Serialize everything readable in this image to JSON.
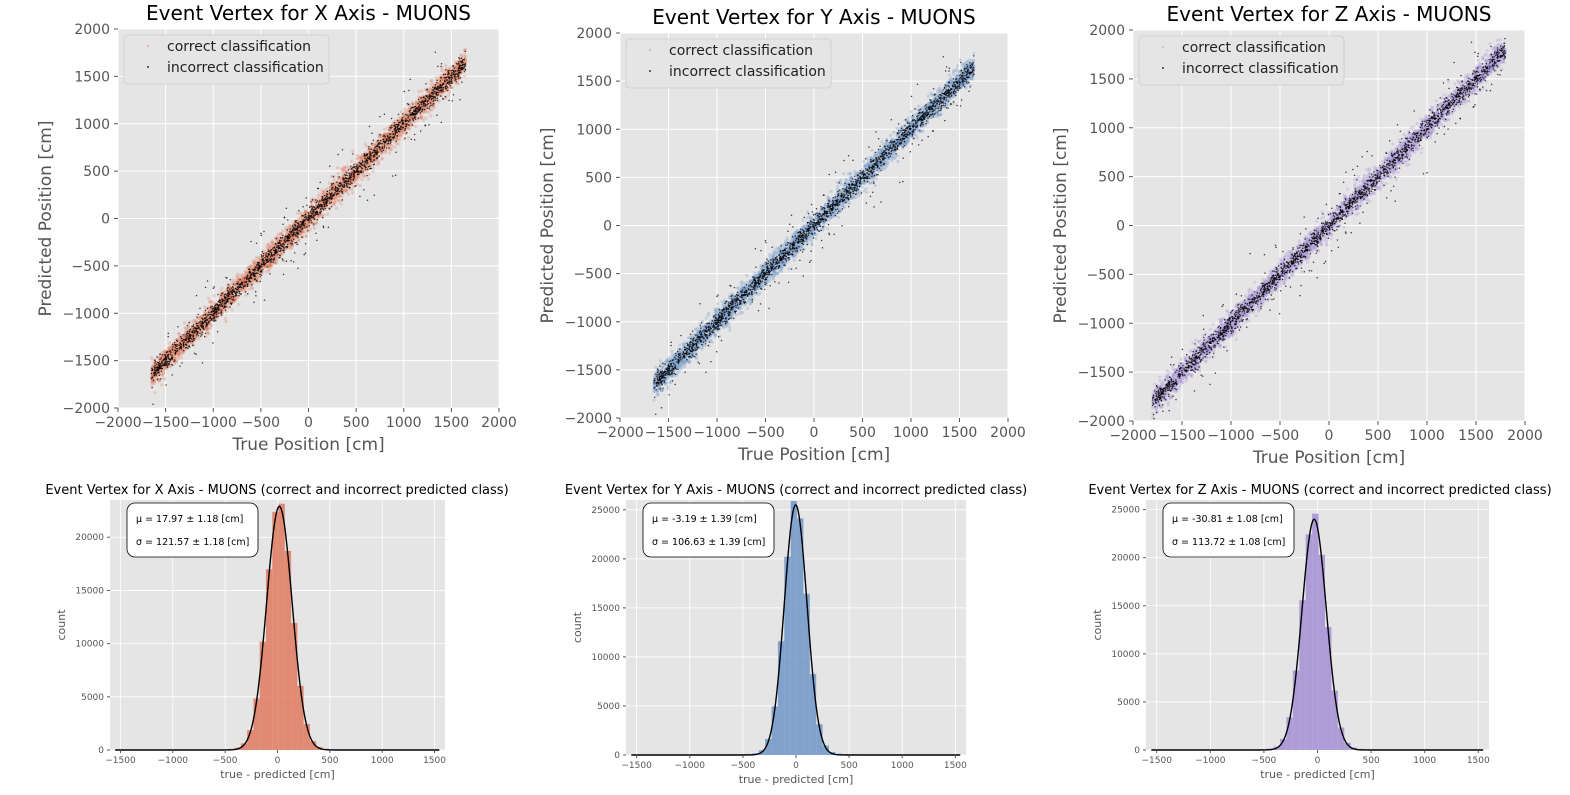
{
  "chart_data": [
    {
      "type": "scatter",
      "panel": "scatter-x",
      "title": "Event Vertex for X Axis - MUONS",
      "xlabel": "True Position [cm]",
      "ylabel": "Predicted Position [cm]",
      "xlim": [
        -2000,
        2000
      ],
      "ylim": [
        -2000,
        2000
      ],
      "ticks": [
        -2000,
        -1500,
        -1000,
        -500,
        0,
        500,
        1000,
        1500,
        2000
      ],
      "tick_labels": [
        "−2000",
        "−1500",
        "−1000",
        "−500",
        "0",
        "500",
        "1000",
        "1500",
        "2000"
      ],
      "data_range": [
        -1650,
        1650
      ],
      "correct_color": "#e07a5f",
      "incorrect_color": "#000000",
      "series": [
        {
          "name": "correct classification",
          "values": [
            [
              -1600,
              -1600
            ],
            [
              -1000,
              -1000
            ],
            [
              0,
              0
            ],
            [
              1000,
              1000
            ],
            [
              1600,
              1600
            ]
          ]
        },
        {
          "name": "incorrect classification",
          "values": [
            [
              -1500,
              -1450
            ],
            [
              -800,
              -760
            ],
            [
              -200,
              -210
            ],
            [
              300,
              320
            ],
            [
              900,
              880
            ],
            [
              1400,
              1420
            ]
          ]
        }
      ],
      "grid": true,
      "legend": "top-left"
    },
    {
      "type": "scatter",
      "panel": "scatter-y",
      "title": "Event Vertex for Y Axis - MUONS",
      "xlabel": "True Position [cm]",
      "ylabel": "Predicted Position [cm]",
      "xlim": [
        -2000,
        2000
      ],
      "ylim": [
        -2000,
        2000
      ],
      "ticks": [
        -2000,
        -1500,
        -1000,
        -500,
        0,
        500,
        1000,
        1500,
        2000
      ],
      "tick_labels": [
        "−2000",
        "−1500",
        "−1000",
        "−500",
        "0",
        "500",
        "1000",
        "1500",
        "2000"
      ],
      "data_range": [
        -1650,
        1650
      ],
      "correct_color": "#6f97c9",
      "incorrect_color": "#000000",
      "series": [
        {
          "name": "correct classification",
          "values": [
            [
              -1600,
              -1600
            ],
            [
              -1000,
              -1000
            ],
            [
              0,
              0
            ],
            [
              1000,
              1000
            ],
            [
              1600,
              1600
            ]
          ]
        },
        {
          "name": "incorrect classification",
          "values": [
            [
              -1500,
              -1480
            ],
            [
              -800,
              -820
            ],
            [
              -200,
              -190
            ],
            [
              300,
              280
            ],
            [
              900,
              930
            ],
            [
              1400,
              1390
            ]
          ]
        }
      ],
      "grid": true,
      "legend": "top-left"
    },
    {
      "type": "scatter",
      "panel": "scatter-z",
      "title": "Event Vertex for Z Axis - MUONS",
      "xlabel": "True Position [cm]",
      "ylabel": "Predicted Position [cm]",
      "xlim": [
        -2000,
        2000
      ],
      "ylim": [
        -2000,
        2000
      ],
      "ticks": [
        -2000,
        -1500,
        -1000,
        -500,
        0,
        500,
        1000,
        1500,
        2000
      ],
      "tick_labels": [
        "−2000",
        "−1500",
        "−1000",
        "−500",
        "0",
        "500",
        "1000",
        "1500",
        "2000"
      ],
      "data_range": [
        -1800,
        1800
      ],
      "correct_color": "#a58fd6",
      "incorrect_color": "#000000",
      "series": [
        {
          "name": "correct classification",
          "values": [
            [
              -1800,
              -1800
            ],
            [
              -1000,
              -1000
            ],
            [
              0,
              0
            ],
            [
              1000,
              1000
            ],
            [
              1800,
              1800
            ]
          ]
        },
        {
          "name": "incorrect classification",
          "values": [
            [
              -1750,
              -1700
            ],
            [
              -800,
              -760
            ],
            [
              -200,
              -230
            ],
            [
              300,
              340
            ],
            [
              900,
              870
            ],
            [
              1750,
              1800
            ]
          ]
        }
      ],
      "grid": true,
      "legend": "top-left"
    },
    {
      "type": "bar",
      "panel": "hist-x",
      "title": "Event Vertex for X Axis - MUONS (correct and incorrect predicted class)",
      "xlabel": "true - predicted [cm]",
      "ylabel": "count",
      "xlim": [
        -1600,
        1600
      ],
      "ylim": [
        0,
        23500
      ],
      "xticks": [
        -1500,
        -1000,
        -500,
        0,
        500,
        1000,
        1500
      ],
      "xtick_labels": [
        "−1500",
        "−1000",
        "−500",
        "0",
        "500",
        "1000",
        "1500"
      ],
      "yticks": [
        0,
        5000,
        10000,
        15000,
        20000
      ],
      "ytick_labels": [
        "0",
        "5000",
        "10000",
        "15000",
        "20000"
      ],
      "bin_width": 60,
      "mu": 17.97,
      "sigma": 121.57,
      "peak": 22900,
      "bar_color": "#e07a5f",
      "stat_mu": "μ = 17.97 ± 1.18 [cm]",
      "stat_sigma": "σ = 121.57 ± 1.18 [cm]",
      "grid": true
    },
    {
      "type": "bar",
      "panel": "hist-y",
      "title": "Event Vertex for Y Axis - MUONS (correct and incorrect predicted class)",
      "xlabel": "true - predicted [cm]",
      "ylabel": "count",
      "xlim": [
        -1600,
        1600
      ],
      "ylim": [
        0,
        26000
      ],
      "xticks": [
        -1500,
        -1000,
        -500,
        0,
        500,
        1000,
        1500
      ],
      "xtick_labels": [
        "−1500",
        "−1000",
        "−500",
        "0",
        "500",
        "1000",
        "1500"
      ],
      "yticks": [
        0,
        5000,
        10000,
        15000,
        20000,
        25000
      ],
      "ytick_labels": [
        "0",
        "5000",
        "10000",
        "15000",
        "20000",
        "25000"
      ],
      "bin_width": 60,
      "mu": -3.19,
      "sigma": 106.63,
      "peak": 25500,
      "bar_color": "#6f97c9",
      "stat_mu": "μ = -3.19 ± 1.39 [cm]",
      "stat_sigma": "σ = 106.63 ± 1.39 [cm]",
      "grid": true
    },
    {
      "type": "bar",
      "panel": "hist-z",
      "title": "Event Vertex for Z Axis - MUONS (correct and incorrect predicted class)",
      "xlabel": "true - predicted [cm]",
      "ylabel": "count",
      "xlim": [
        -1600,
        1600
      ],
      "ylim": [
        0,
        26000
      ],
      "xticks": [
        -1500,
        -1000,
        -500,
        0,
        500,
        1000,
        1500
      ],
      "xtick_labels": [
        "−1500",
        "−1000",
        "−500",
        "0",
        "500",
        "1000",
        "1500"
      ],
      "yticks": [
        0,
        5000,
        10000,
        15000,
        20000,
        25000
      ],
      "ytick_labels": [
        "0",
        "5000",
        "10000",
        "15000",
        "20000",
        "25000"
      ],
      "bin_width": 60,
      "mu": -30.81,
      "sigma": 113.72,
      "peak": 24000,
      "bar_color": "#a58fd6",
      "stat_mu": "μ = -30.81 ± 1.08 [cm]",
      "stat_sigma": "σ = 113.72 ± 1.08 [cm]",
      "grid": true
    }
  ]
}
